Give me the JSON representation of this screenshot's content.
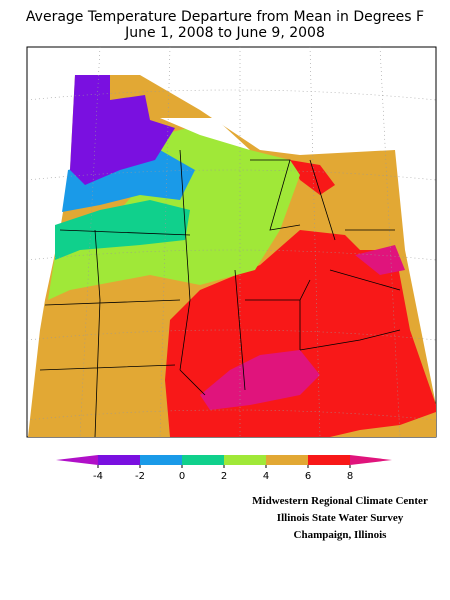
{
  "title": [
    "Average Temperature Departure from Mean in Degrees F",
    "June 1, 2008 to June 9, 2008"
  ],
  "legend": {
    "ticks": [
      -4,
      -2,
      0,
      2,
      4,
      6,
      8
    ],
    "colors": [
      "#b010c8",
      "#7a10e0",
      "#1a9ae8",
      "#10d08c",
      "#a0e838",
      "#e2a834",
      "#f81818",
      "#e0147c"
    ]
  },
  "credits": [
    "Midwestern Regional Climate Center",
    "Illinois State Water Survey",
    "Champaign, Illinois"
  ]
}
